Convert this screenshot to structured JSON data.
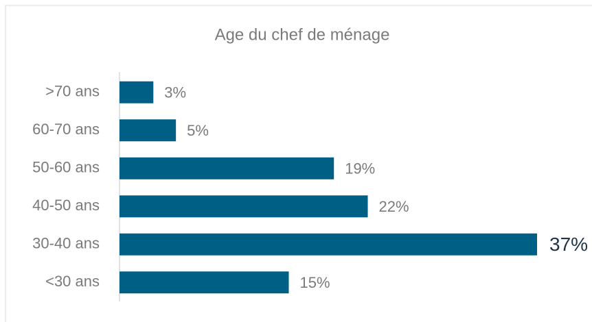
{
  "chart_data": {
    "type": "bar",
    "orientation": "horizontal",
    "title": "Age du chef de ménage",
    "categories": [
      ">70 ans",
      "60-70 ans",
      "50-60 ans",
      "40-50 ans",
      "30-40 ans",
      "<30 ans"
    ],
    "values": [
      3,
      5,
      19,
      22,
      37,
      15
    ],
    "value_labels": [
      "3%",
      "5%",
      "19%",
      "22%",
      "37%",
      "15%"
    ],
    "color": "#005f85",
    "highlight": 4
  }
}
